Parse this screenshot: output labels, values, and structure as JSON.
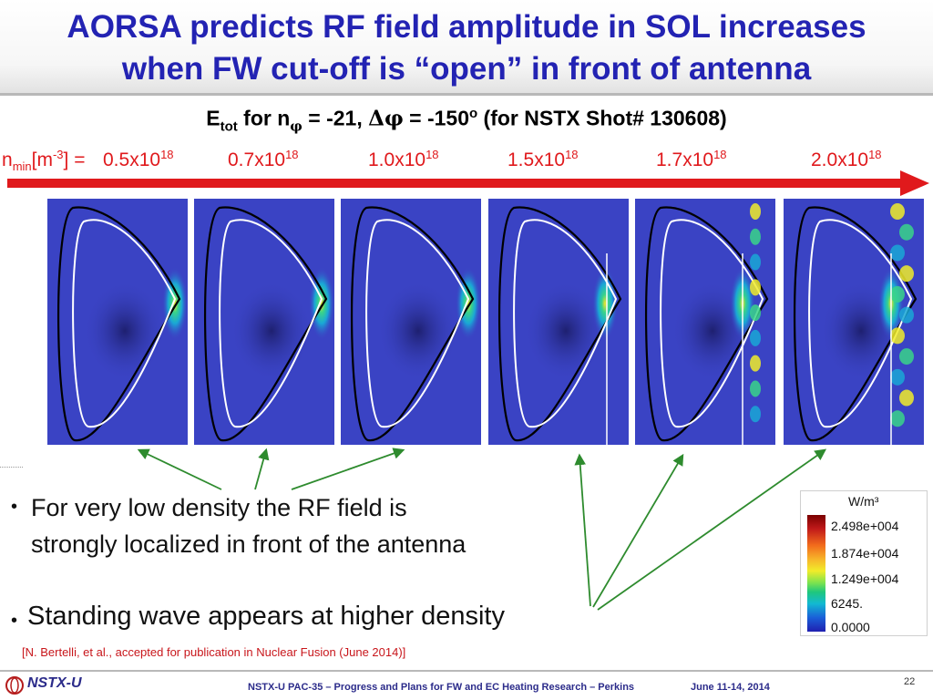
{
  "title": {
    "line1": "AORSA predicts RF field amplitude in SOL increases",
    "line2": "when FW cut-off is “open” in front of antenna"
  },
  "subtitle": {
    "e": "E",
    "e_sub": "tot",
    "for_n": " for n",
    "phi": "φ",
    "eq1": " = -21, ",
    "delta_phi": "Δφ",
    "eq2": " = -150",
    "deg": "o",
    "rest": " (for NSTX Shot# 130608)"
  },
  "density": {
    "label_n": "n",
    "label_sub": "min",
    "label_unit_open": "[m",
    "label_unit_sup": "-3",
    "label_unit_close": "] =",
    "exp": "18",
    "values": [
      "0.5x10",
      "0.7x10",
      "1.0x10",
      "1.5x10",
      "1.7x10",
      "2.0x10"
    ]
  },
  "bullets": {
    "b1_line1": "For very low density the RF field is",
    "b1_line2": "strongly localized in front of the antenna",
    "b2": "Standing wave appears at higher density",
    "dot": "•"
  },
  "citation": "[N. Bertelli, et al., accepted for publication in Nuclear Fusion (June 2014)]",
  "legend": {
    "unit": "W/m³",
    "labels": [
      "2.498e+004",
      "1.874e+004",
      "1.249e+004",
      "6245.",
      "0.0000"
    ]
  },
  "footer": {
    "logo": "NSTX-U",
    "center": "NSTX-U PAC-35 – Progress and Plans for FW and EC Heating Research – Perkins",
    "date": "June 11-14, 2014",
    "page": "22"
  },
  "colors": {
    "title": "#2323b3",
    "accent_red": "#e0191c",
    "panel_bg": "#3a43c4",
    "green_arrow": "#2e8b2e"
  }
}
